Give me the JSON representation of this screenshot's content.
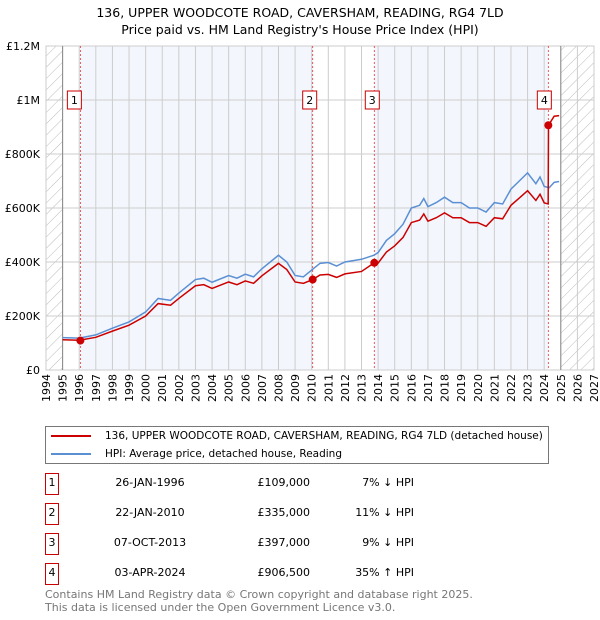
{
  "chart_data": {
    "type": "line",
    "title": "136, UPPER WOODCOTE ROAD, CAVERSHAM, READING, RG4 7LD",
    "subtitle": "Price paid vs. HM Land Registry's House Price Index (HPI)",
    "xlim": [
      1994,
      2027
    ],
    "ylim": [
      0,
      1200000
    ],
    "x_ticks": [
      "1994",
      "1995",
      "1996",
      "1997",
      "1998",
      "1999",
      "2000",
      "2001",
      "2002",
      "2003",
      "2004",
      "2005",
      "2006",
      "2007",
      "2008",
      "2009",
      "2010",
      "2011",
      "2012",
      "2013",
      "2014",
      "2015",
      "2016",
      "2017",
      "2018",
      "2019",
      "2020",
      "2021",
      "2022",
      "2023",
      "2024",
      "2025",
      "2026",
      "2027"
    ],
    "y_ticks": [
      {
        "v": 0,
        "label": "£0"
      },
      {
        "v": 200000,
        "label": "£200K"
      },
      {
        "v": 400000,
        "label": "£400K"
      },
      {
        "v": 600000,
        "label": "£600K"
      },
      {
        "v": 800000,
        "label": "£800K"
      },
      {
        "v": 1000000,
        "label": "£1M"
      },
      {
        "v": 1200000,
        "label": "£1.2M"
      }
    ],
    "data_range": [
      1995,
      2025
    ],
    "shaded_periods": [
      [
        1996.07,
        2010.06
      ],
      [
        2013.77,
        2024.25
      ]
    ],
    "series": [
      {
        "name": "HPI: Average price, detached house, Reading",
        "color": "#5b8fd4",
        "x": [
          1995,
          1996,
          1997,
          1998,
          1999,
          2000,
          2000.75,
          2001.5,
          2002,
          2003,
          2003.5,
          2004,
          2005,
          2005.5,
          2006,
          2006.5,
          2007,
          2008,
          2008.5,
          2009,
          2009.5,
          2010,
          2010.5,
          2011,
          2011.5,
          2012,
          2013,
          2013.75,
          2014,
          2014.5,
          2015,
          2015.5,
          2016,
          2016.5,
          2016.75,
          2017,
          2017.5,
          2018,
          2018.5,
          2019,
          2019.5,
          2020,
          2020.5,
          2021,
          2021.5,
          2022,
          2022.5,
          2023,
          2023.5,
          2023.75,
          2024,
          2024.3,
          2024.6,
          2024.9
        ],
        "y": [
          120,
          118,
          130,
          155,
          178,
          215,
          265,
          258,
          285,
          335,
          340,
          325,
          350,
          340,
          355,
          345,
          375,
          425,
          400,
          350,
          345,
          370,
          395,
          398,
          385,
          400,
          410,
          425,
          435,
          480,
          505,
          540,
          600,
          610,
          635,
          605,
          620,
          640,
          620,
          620,
          600,
          600,
          585,
          620,
          615,
          670,
          700,
          730,
          690,
          715,
          680,
          675,
          695,
          698
        ],
        "unit": "thousand GBP"
      },
      {
        "name": "136, UPPER WOODCOTE ROAD, CAVERSHAM, READING, RG4 7LD (detached house)",
        "color": "#cc0000",
        "x": [
          1995,
          1996,
          1997,
          1998,
          1999,
          2000,
          2000.75,
          2001.5,
          2002,
          2003,
          2003.5,
          2004,
          2005,
          2005.5,
          2006,
          2006.5,
          2007,
          2008,
          2008.5,
          2009,
          2009.5,
          2010.06,
          2010.5,
          2011,
          2011.5,
          2012,
          2013,
          2013.77,
          2014,
          2014.5,
          2015,
          2015.5,
          2016,
          2016.5,
          2016.75,
          2017,
          2017.5,
          2018,
          2018.5,
          2019,
          2019.5,
          2020,
          2020.5,
          2021,
          2021.5,
          2022,
          2022.5,
          2023,
          2023.5,
          2023.75,
          2024,
          2024.24,
          2024.26,
          2024.6,
          2024.9
        ],
        "y": [
          112,
          110,
          121,
          144,
          166,
          200,
          246,
          240,
          265,
          312,
          316,
          302,
          326,
          316,
          330,
          321,
          349,
          395,
          372,
          326,
          321,
          335,
          352,
          354,
          343,
          356,
          365,
          397,
          396,
          437,
          460,
          491,
          546,
          555,
          578,
          551,
          564,
          582,
          564,
          564,
          546,
          546,
          532,
          564,
          560,
          610,
          637,
          664,
          628,
          651,
          619,
          615,
          906.5,
          940,
          942
        ],
        "unit": "thousand GBP"
      }
    ],
    "sales": [
      {
        "n": "1",
        "x": 1996.07,
        "date": "26-JAN-1996",
        "price": "£109,000",
        "value": 109000,
        "hpi": "7% ↓ HPI"
      },
      {
        "n": "2",
        "x": 2010.06,
        "date": "22-JAN-2010",
        "price": "£335,000",
        "value": 335000,
        "hpi": "11% ↓ HPI"
      },
      {
        "n": "3",
        "x": 2013.77,
        "date": "07-OCT-2013",
        "price": "£397,000",
        "value": 397000,
        "hpi": "9% ↓ HPI"
      },
      {
        "n": "4",
        "x": 2024.25,
        "date": "03-APR-2024",
        "price": "£906,500",
        "value": 906500,
        "hpi": "35% ↑ HPI"
      }
    ]
  },
  "footer": {
    "line1": "Contains HM Land Registry data © Crown copyright and database right 2025.",
    "line2": "This data is licensed under the Open Government Licence v3.0."
  }
}
